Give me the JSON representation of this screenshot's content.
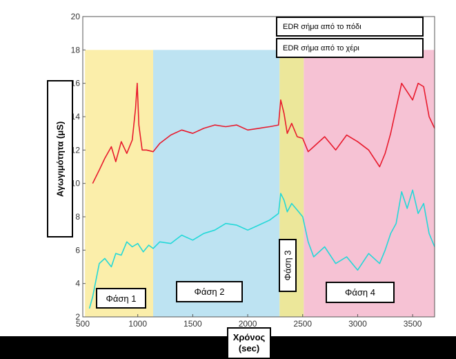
{
  "chart_data": {
    "type": "line",
    "title": "",
    "xlabel": [
      "Χρόνος",
      "(sec)"
    ],
    "ylabel": "Αγωγιμότητα (μS)",
    "xlim": [
      500,
      3700
    ],
    "ylim": [
      2,
      20
    ],
    "xticks": [
      500,
      1000,
      1500,
      2000,
      2500,
      3000,
      3500
    ],
    "yticks": [
      2,
      4,
      6,
      8,
      10,
      12,
      14,
      16,
      18,
      20
    ],
    "grid": false,
    "legend": {
      "position": "top-right",
      "entries": [
        {
          "label": "EDR σήμα από το πόδι",
          "color": "#e8192c"
        },
        {
          "label": "EDR σήμα από το χέρι",
          "color": "#22d8d8"
        }
      ]
    },
    "phases": [
      {
        "label": "Φάση 1",
        "x_start": 520,
        "x_end": 1140,
        "y_top": 18,
        "color": "#fbeeaa"
      },
      {
        "label": "Φάση 2",
        "x_start": 1140,
        "x_end": 2290,
        "y_top": 18,
        "color": "#bde3f2"
      },
      {
        "label": "Φάση 3",
        "x_start": 2290,
        "x_end": 2510,
        "y_top": 18,
        "color": "#ece79a"
      },
      {
        "label": "Φάση 4",
        "x_start": 2510,
        "x_end": 3700,
        "y_top": 18,
        "color": "#f6c2d4"
      }
    ],
    "series": [
      {
        "name": "EDR σήμα από το πόδι",
        "color": "#e8192c",
        "x": [
          590,
          650,
          700,
          760,
          800,
          850,
          900,
          950,
          980,
          995,
          1010,
          1040,
          1080,
          1140,
          1200,
          1300,
          1400,
          1500,
          1600,
          1700,
          1800,
          1900,
          2000,
          2100,
          2200,
          2280,
          2300,
          2330,
          2360,
          2400,
          2450,
          2500,
          2550,
          2600,
          2700,
          2800,
          2900,
          3000,
          3100,
          3200,
          3250,
          3300,
          3350,
          3400,
          3450,
          3500,
          3550,
          3600,
          3650,
          3700
        ],
        "y": [
          10.0,
          10.8,
          11.5,
          12.2,
          11.3,
          12.5,
          11.8,
          12.6,
          14.5,
          16.0,
          13.5,
          12.0,
          12.0,
          11.9,
          12.4,
          12.9,
          13.2,
          13.0,
          13.3,
          13.5,
          13.4,
          13.5,
          13.2,
          13.3,
          13.4,
          13.5,
          15.0,
          14.2,
          13.0,
          13.6,
          12.8,
          12.7,
          11.9,
          12.2,
          12.8,
          12.0,
          12.9,
          12.5,
          12.0,
          11.0,
          11.8,
          13.0,
          14.5,
          16.0,
          15.5,
          15.0,
          16.0,
          15.8,
          14.0,
          13.3
        ]
      },
      {
        "name": "EDR σήμα από το χέρι",
        "color": "#22d8d8",
        "x": [
          560,
          590,
          620,
          650,
          700,
          760,
          800,
          850,
          900,
          950,
          1000,
          1050,
          1100,
          1140,
          1200,
          1300,
          1400,
          1500,
          1600,
          1700,
          1800,
          1900,
          2000,
          2100,
          2200,
          2280,
          2300,
          2330,
          2360,
          2400,
          2450,
          2500,
          2550,
          2600,
          2700,
          2800,
          2900,
          3000,
          3100,
          3200,
          3250,
          3300,
          3350,
          3400,
          3450,
          3500,
          3550,
          3600,
          3650,
          3700
        ],
        "y": [
          2.5,
          3.2,
          4.2,
          5.2,
          5.5,
          5.0,
          5.8,
          5.7,
          6.5,
          6.2,
          6.4,
          5.9,
          6.3,
          6.1,
          6.5,
          6.4,
          6.9,
          6.6,
          7.0,
          7.2,
          7.6,
          7.5,
          7.2,
          7.5,
          7.8,
          8.2,
          9.4,
          9.0,
          8.3,
          8.8,
          8.4,
          8.0,
          6.5,
          5.6,
          6.2,
          5.2,
          5.6,
          4.8,
          5.8,
          5.2,
          6.0,
          7.0,
          7.6,
          9.5,
          8.5,
          9.6,
          8.2,
          8.8,
          7.0,
          6.2
        ]
      }
    ]
  },
  "labels": {
    "ylabel": "Αγωγιμότητα (μS)",
    "xlabel_line1": "Χρόνος",
    "xlabel_line2": "(sec)",
    "legend_foot": "EDR σήμα από το πόδι",
    "legend_hand": "EDR σήμα από το χέρι",
    "phase1": "Φάση 1",
    "phase2": "Φάση 2",
    "phase3": "Φάση 3",
    "phase4": "Φάση 4"
  }
}
